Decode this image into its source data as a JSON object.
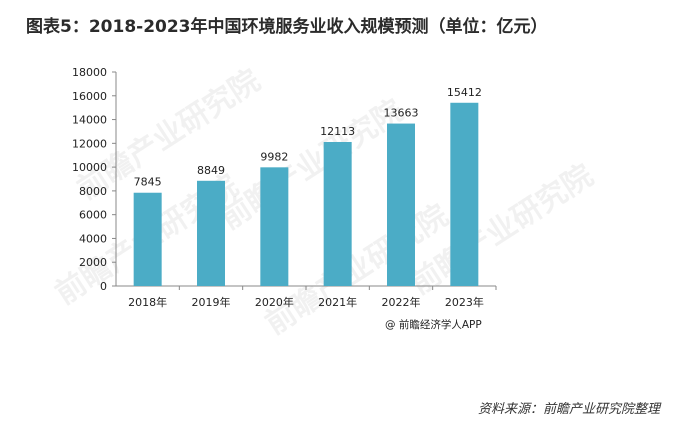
{
  "title": "图表5：2018-2023年中国环境服务业收入规模预测（单位：亿元）",
  "watermark": "前瞻产业研究院",
  "credit": "@ 前瞻经济学人APP",
  "source": "资料来源：前瞻产业研究院整理",
  "colors": {
    "bar": "#4bacc6",
    "axis": "#888888",
    "text": "#222222"
  },
  "chart_data": {
    "type": "bar",
    "title": "图表5：2018-2023年中国环境服务业收入规模预测（单位：亿元）",
    "categories": [
      "2018年",
      "2019年",
      "2020年",
      "2021年",
      "2022年",
      "2023年"
    ],
    "values": [
      7845,
      8849,
      9982,
      12113,
      13663,
      15412
    ],
    "ylim": [
      0,
      18000
    ],
    "yticks": [
      0,
      2000,
      4000,
      6000,
      8000,
      10000,
      12000,
      14000,
      16000,
      18000
    ],
    "grid": false,
    "legend": "none",
    "data_labels": true
  }
}
